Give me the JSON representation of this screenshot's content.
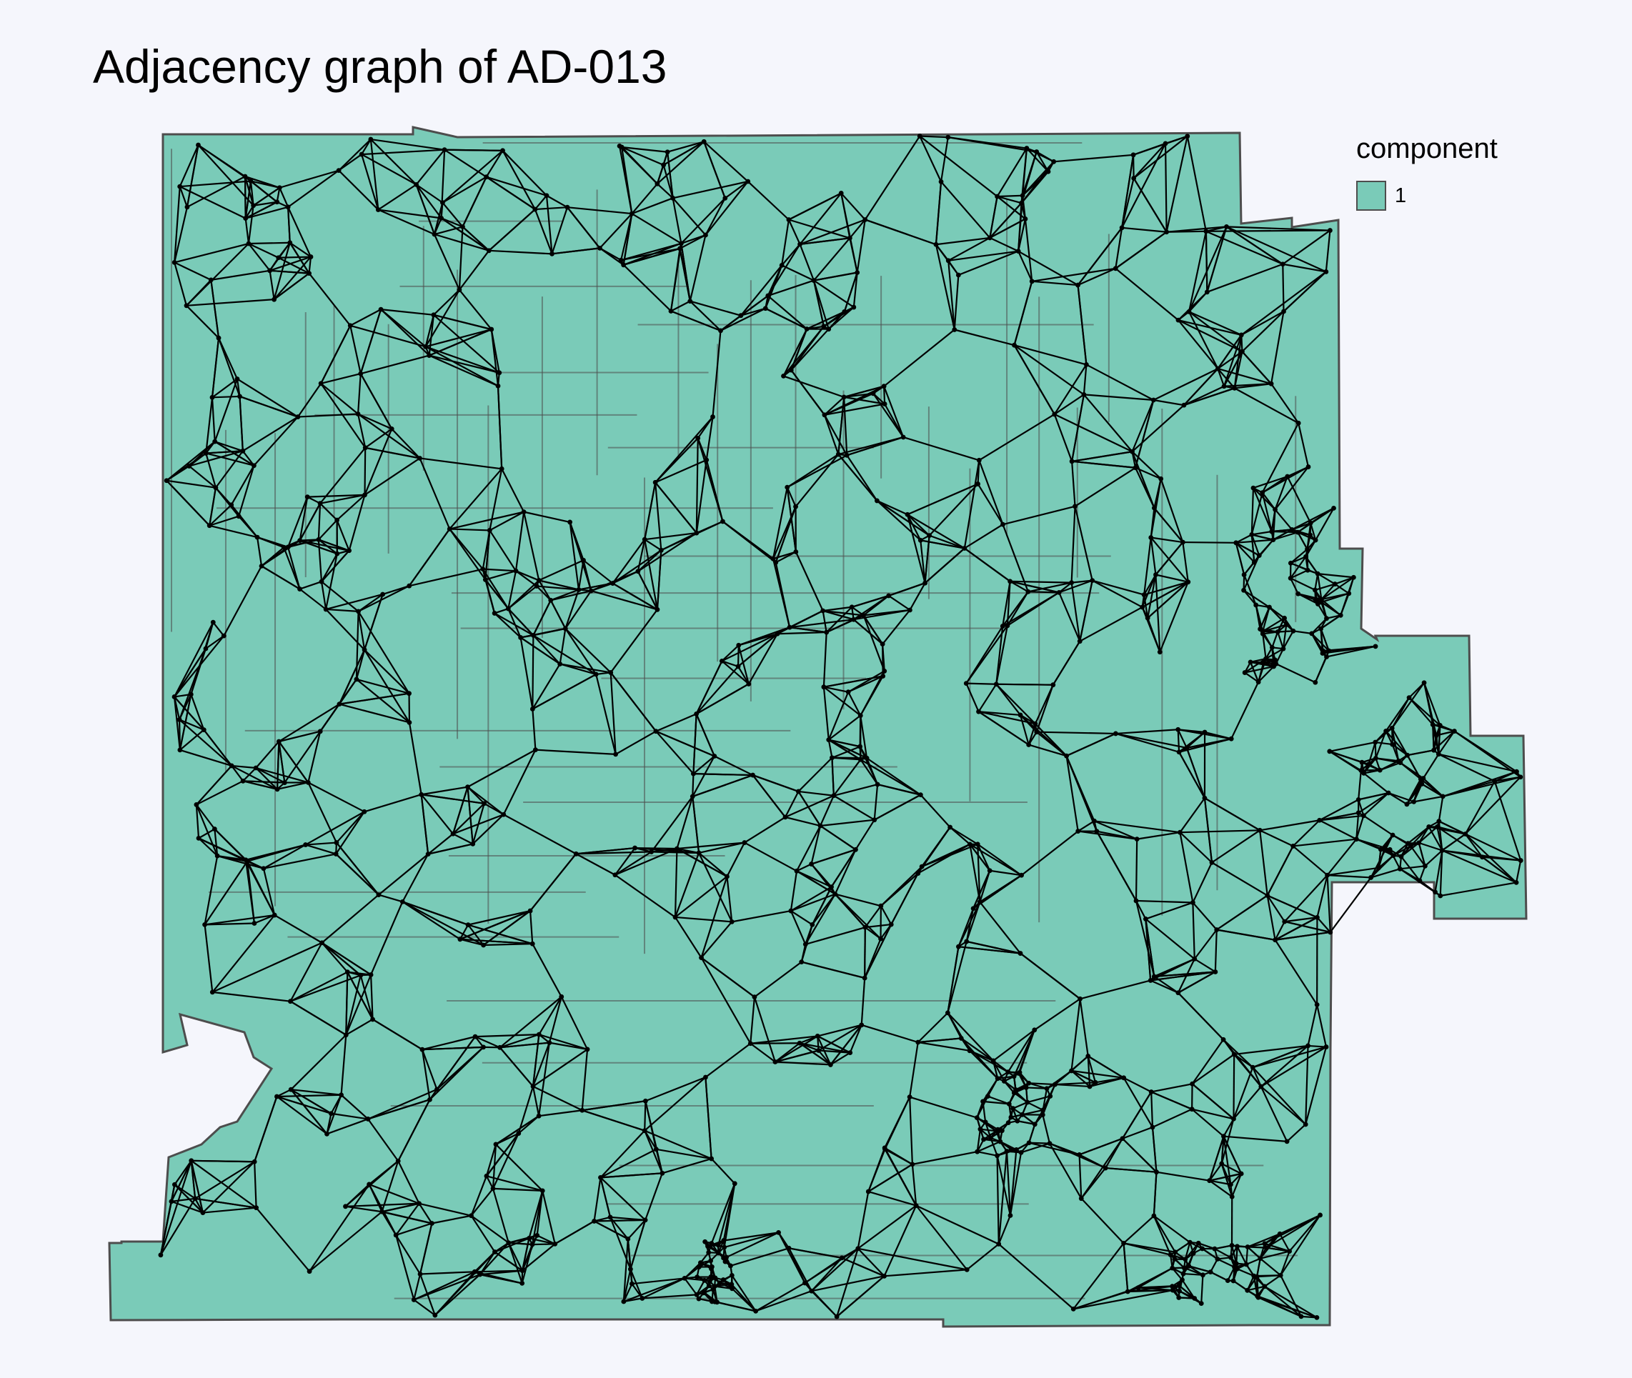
{
  "title": "Adjacency graph of AD-013",
  "legend": {
    "title": "component",
    "items": [
      {
        "label": "1",
        "color": "#7acbb8"
      }
    ]
  },
  "colors": {
    "background": "#f5f6fc",
    "region_fill": "#7acbb8",
    "region_border": "#4d4d4d",
    "edge": "#000000",
    "node": "#000000"
  }
}
